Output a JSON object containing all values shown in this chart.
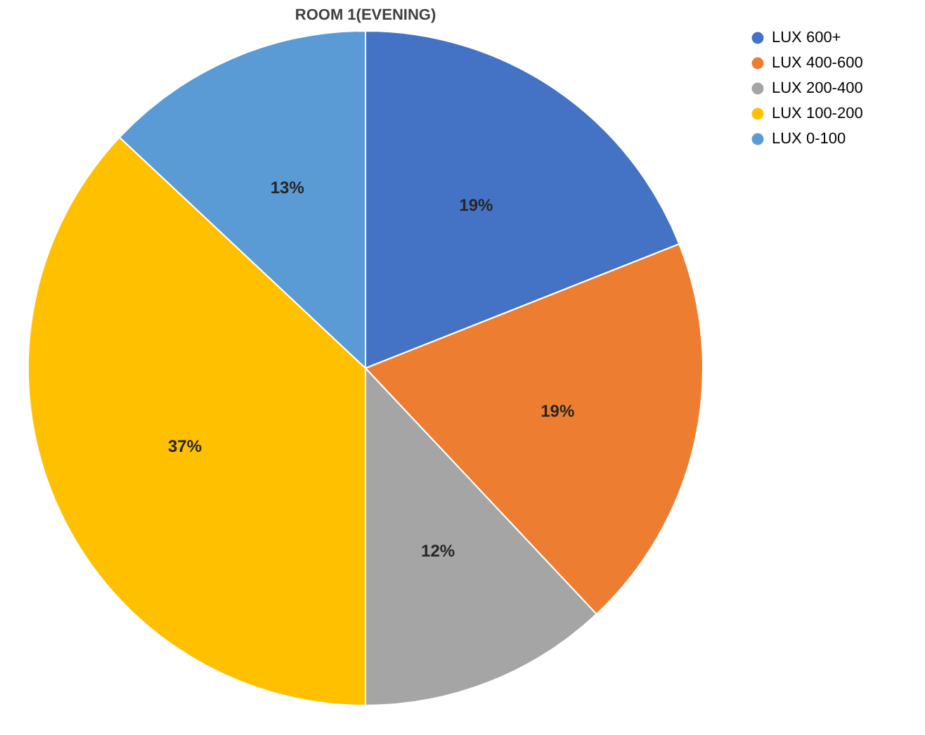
{
  "chart_data": {
    "type": "pie",
    "title": "ROOM 1(EVENING)",
    "categories": [
      "LUX 600+",
      "LUX 400-600",
      "LUX 200-400",
      "LUX 100-200",
      "LUX 0-100"
    ],
    "values": [
      19,
      19,
      12,
      37,
      13
    ],
    "colors": [
      "#4472c4",
      "#ed7d31",
      "#a5a5a5",
      "#ffc000",
      "#5b9bd5"
    ],
    "value_labels": [
      "19%",
      "19%",
      "12%",
      "37%",
      "13%"
    ],
    "legend": "right"
  }
}
